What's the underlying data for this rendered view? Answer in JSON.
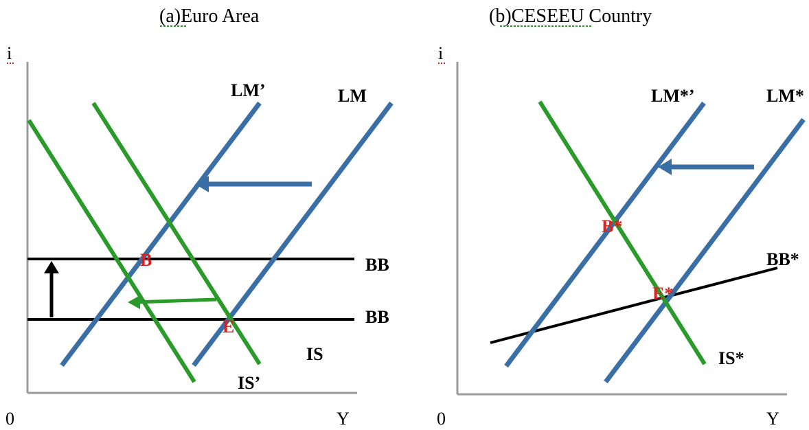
{
  "colors": {
    "lm": "#3a6fa6",
    "is": "#2a9a2a",
    "bb": "#000000",
    "point": "#e0201c",
    "spell_underline": "#2a9a2a"
  },
  "panel_a": {
    "title": "(a)Euro Area",
    "y_axis": "i",
    "origin": "0",
    "x_axis": "Y",
    "curves": {
      "lm_prime": "LM’",
      "lm": "LM",
      "bb_upper": "BB",
      "bb_lower": "BB",
      "is": "IS",
      "is_prime": "IS’"
    },
    "points": {
      "b": "B",
      "e": "E"
    }
  },
  "panel_b": {
    "title": "(b)CESEEU Country",
    "y_axis": "i",
    "origin": "0",
    "x_axis": "Y",
    "curves": {
      "lm_star_prime": "LM*’",
      "lm_star": "LM*",
      "bb_star": "BB*",
      "is_star": "IS*"
    },
    "points": {
      "b_star": "B*",
      "e_star": "E*"
    }
  }
}
